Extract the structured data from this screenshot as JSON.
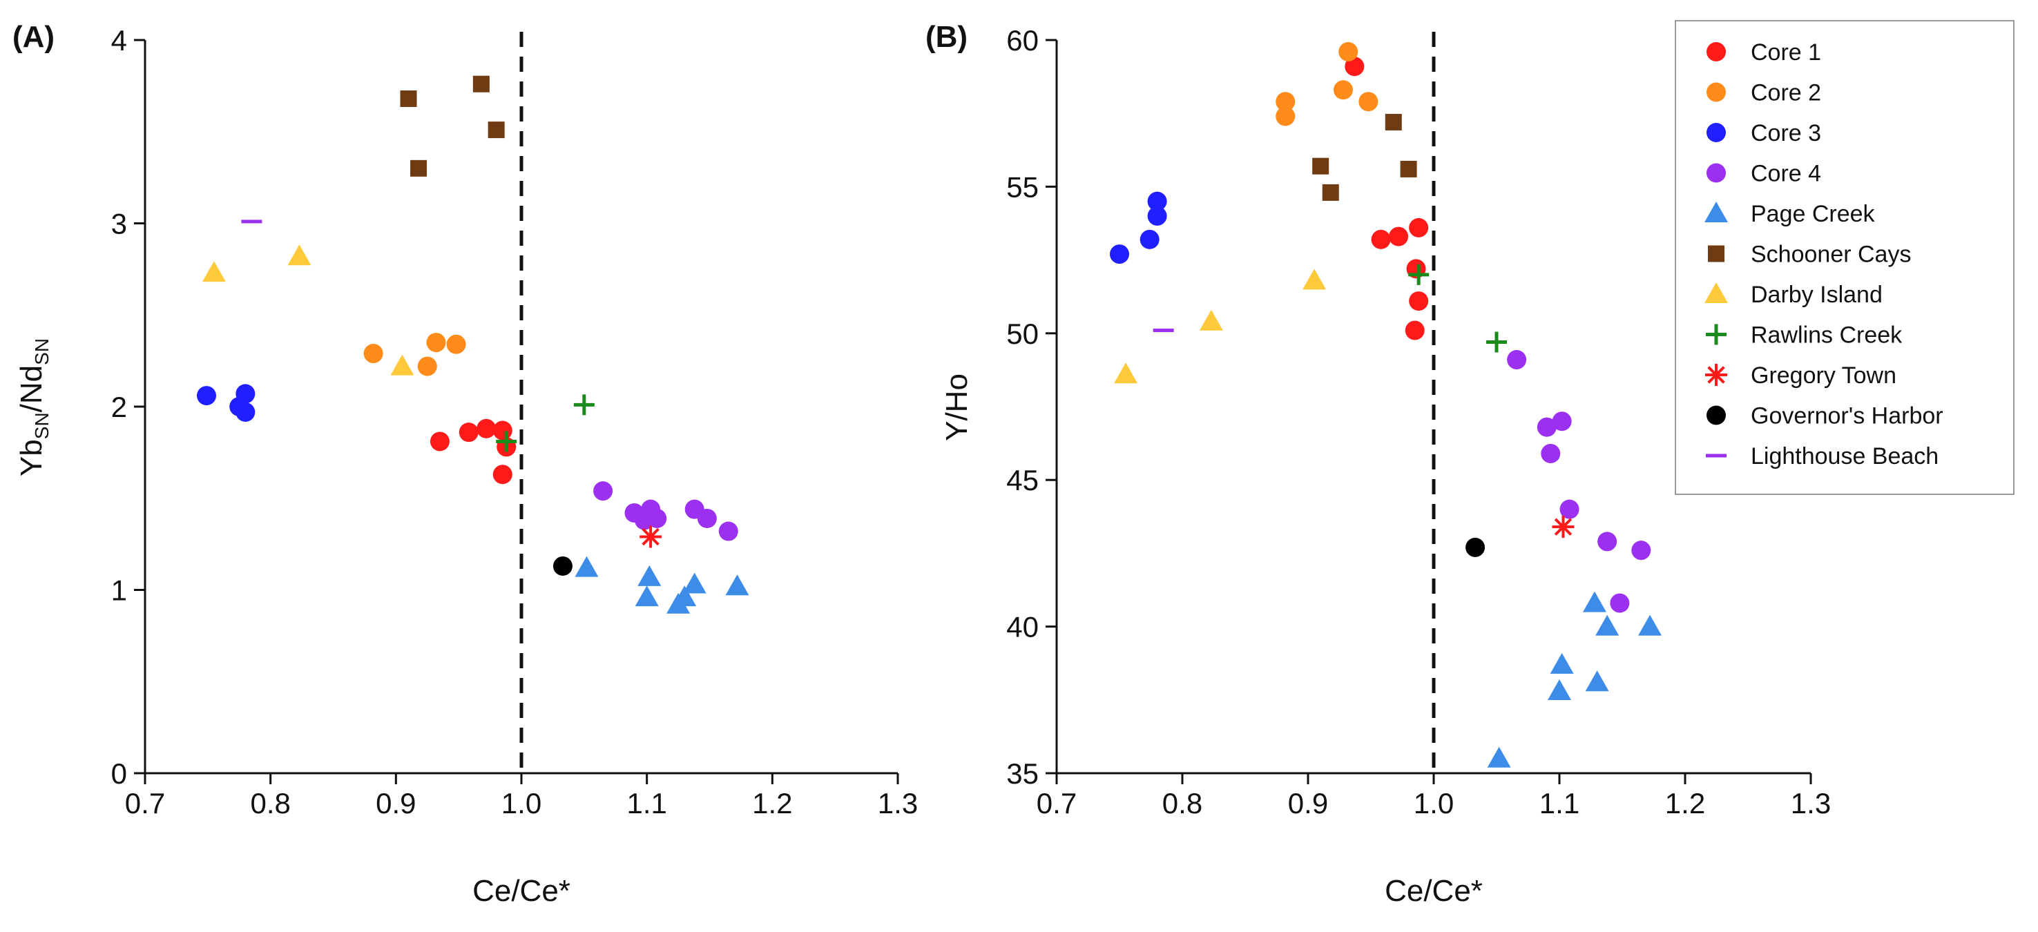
{
  "legend": [
    {
      "name": "Core 1",
      "marker": "circle",
      "color": "#ff1a1a"
    },
    {
      "name": "Core 2",
      "marker": "circle",
      "color": "#ff8c1a"
    },
    {
      "name": "Core 3",
      "marker": "circle",
      "color": "#1f1fff"
    },
    {
      "name": "Core 4",
      "marker": "circle",
      "color": "#9b30f0"
    },
    {
      "name": "Page Creek",
      "marker": "triangle",
      "color": "#3c8ce8"
    },
    {
      "name": "Schooner Cays",
      "marker": "square",
      "color": "#6e3b12"
    },
    {
      "name": "Darby Island",
      "marker": "triangle",
      "color": "#ffc93c"
    },
    {
      "name": "Rawlins Creek",
      "marker": "plus",
      "color": "#1a8a1a"
    },
    {
      "name": "Gregory Town",
      "marker": "asterisk",
      "color": "#ff1a1a"
    },
    {
      "name": "Governor's Harbor",
      "marker": "circle",
      "color": "#000000"
    },
    {
      "name": "Lighthouse Beach",
      "marker": "dash",
      "color": "#9b30f0"
    }
  ],
  "chart_data": [
    {
      "type": "scatter",
      "panel": "(A)",
      "xlabel": "Ce/Ce*",
      "ylabel_main": "Yb",
      "ylabel_sub1": "SN",
      "ylabel_mid": "/Nd",
      "ylabel_sub2": "SN",
      "xlim": [
        0.7,
        1.3
      ],
      "ylim": [
        0,
        4
      ],
      "xticks": [
        0.7,
        0.8,
        0.9,
        1.0,
        1.1,
        1.2,
        1.3
      ],
      "xtick_labels": [
        "0.7",
        "0.8",
        "0.9",
        "1.0",
        "1.1",
        "1.2",
        "1.3"
      ],
      "yticks": [
        0,
        1,
        2,
        3,
        4
      ],
      "ytick_labels": [
        "0",
        "1",
        "2",
        "3",
        "4"
      ],
      "reference_line_x": 1.0,
      "series": [
        {
          "name": "Core 1",
          "points": [
            [
              0.935,
              1.81
            ],
            [
              0.958,
              1.86
            ],
            [
              0.972,
              1.88
            ],
            [
              0.985,
              1.87
            ],
            [
              0.988,
              1.78
            ],
            [
              0.985,
              1.63
            ]
          ]
        },
        {
          "name": "Core 2",
          "points": [
            [
              0.882,
              2.29
            ],
            [
              0.925,
              2.22
            ],
            [
              0.932,
              2.35
            ],
            [
              0.948,
              2.34
            ]
          ]
        },
        {
          "name": "Core 3",
          "points": [
            [
              0.749,
              2.06
            ],
            [
              0.775,
              2.0
            ],
            [
              0.78,
              1.97
            ],
            [
              0.78,
              2.07
            ]
          ]
        },
        {
          "name": "Core 4",
          "points": [
            [
              1.065,
              1.54
            ],
            [
              1.09,
              1.42
            ],
            [
              1.098,
              1.38
            ],
            [
              1.103,
              1.44
            ],
            [
              1.108,
              1.39
            ],
            [
              1.138,
              1.44
            ],
            [
              1.148,
              1.39
            ],
            [
              1.165,
              1.32
            ]
          ]
        },
        {
          "name": "Page Creek",
          "points": [
            [
              1.052,
              1.12
            ],
            [
              1.1,
              0.96
            ],
            [
              1.102,
              1.07
            ],
            [
              1.125,
              0.92
            ],
            [
              1.13,
              0.96
            ],
            [
              1.138,
              1.03
            ],
            [
              1.172,
              1.02
            ]
          ]
        },
        {
          "name": "Schooner Cays",
          "points": [
            [
              0.91,
              3.68
            ],
            [
              0.918,
              3.3
            ],
            [
              0.968,
              3.76
            ],
            [
              0.98,
              3.51
            ]
          ]
        },
        {
          "name": "Darby Island",
          "points": [
            [
              0.755,
              2.73
            ],
            [
              0.823,
              2.82
            ],
            [
              0.905,
              2.22
            ]
          ]
        },
        {
          "name": "Rawlins Creek",
          "points": [
            [
              0.988,
              1.81
            ],
            [
              1.05,
              2.01
            ]
          ]
        },
        {
          "name": "Gregory Town",
          "points": [
            [
              1.103,
              1.29
            ]
          ]
        },
        {
          "name": "Governor's Harbor",
          "points": [
            [
              1.033,
              1.13
            ]
          ]
        },
        {
          "name": "Lighthouse Beach",
          "points": [
            [
              0.785,
              3.01
            ]
          ]
        }
      ]
    },
    {
      "type": "scatter",
      "panel": "(B)",
      "xlabel": "Ce/Ce*",
      "ylabel_main": "Y/Ho",
      "xlim": [
        0.7,
        1.3
      ],
      "ylim": [
        35,
        60
      ],
      "xticks": [
        0.7,
        0.8,
        0.9,
        1.0,
        1.1,
        1.2,
        1.3
      ],
      "xtick_labels": [
        "0.7",
        "0.8",
        "0.9",
        "1.0",
        "1.1",
        "1.2",
        "1.3"
      ],
      "yticks": [
        35,
        40,
        45,
        50,
        55,
        60
      ],
      "ytick_labels": [
        "35",
        "40",
        "45",
        "50",
        "55",
        "60"
      ],
      "reference_line_x": 1.0,
      "series": [
        {
          "name": "Core 1",
          "points": [
            [
              0.937,
              59.1
            ],
            [
              0.958,
              53.2
            ],
            [
              0.972,
              53.3
            ],
            [
              0.988,
              53.6
            ],
            [
              0.986,
              52.2
            ],
            [
              0.988,
              51.1
            ],
            [
              0.985,
              50.1
            ]
          ]
        },
        {
          "name": "Core 2",
          "points": [
            [
              0.932,
              59.6
            ],
            [
              0.882,
              57.9
            ],
            [
              0.882,
              57.4
            ],
            [
              0.928,
              58.3
            ],
            [
              0.948,
              57.9
            ]
          ]
        },
        {
          "name": "Core 3",
          "points": [
            [
              0.75,
              52.7
            ],
            [
              0.774,
              53.2
            ],
            [
              0.78,
              54.0
            ],
            [
              0.78,
              54.5
            ]
          ]
        },
        {
          "name": "Core 4",
          "points": [
            [
              1.066,
              49.1
            ],
            [
              1.09,
              46.8
            ],
            [
              1.093,
              45.9
            ],
            [
              1.102,
              47.0
            ],
            [
              1.108,
              44.0
            ],
            [
              1.138,
              42.9
            ],
            [
              1.148,
              40.8
            ],
            [
              1.165,
              42.6
            ]
          ]
        },
        {
          "name": "Page Creek",
          "points": [
            [
              1.052,
              35.5
            ],
            [
              1.1,
              37.8
            ],
            [
              1.102,
              38.7
            ],
            [
              1.13,
              38.1
            ],
            [
              1.128,
              40.8
            ],
            [
              1.138,
              40.0
            ],
            [
              1.172,
              40.0
            ]
          ]
        },
        {
          "name": "Schooner Cays",
          "points": [
            [
              0.91,
              55.7
            ],
            [
              0.918,
              54.8
            ],
            [
              0.968,
              57.2
            ],
            [
              0.98,
              55.6
            ]
          ]
        },
        {
          "name": "Darby Island",
          "points": [
            [
              0.755,
              48.6
            ],
            [
              0.823,
              50.4
            ],
            [
              0.905,
              51.8
            ]
          ]
        },
        {
          "name": "Rawlins Creek",
          "points": [
            [
              0.988,
              52.0
            ],
            [
              1.05,
              49.7
            ]
          ]
        },
        {
          "name": "Gregory Town",
          "points": [
            [
              1.103,
              43.4
            ]
          ]
        },
        {
          "name": "Governor's Harbor",
          "points": [
            [
              1.033,
              42.7
            ]
          ]
        },
        {
          "name": "Lighthouse Beach",
          "points": [
            [
              0.785,
              50.1
            ]
          ]
        }
      ]
    }
  ]
}
